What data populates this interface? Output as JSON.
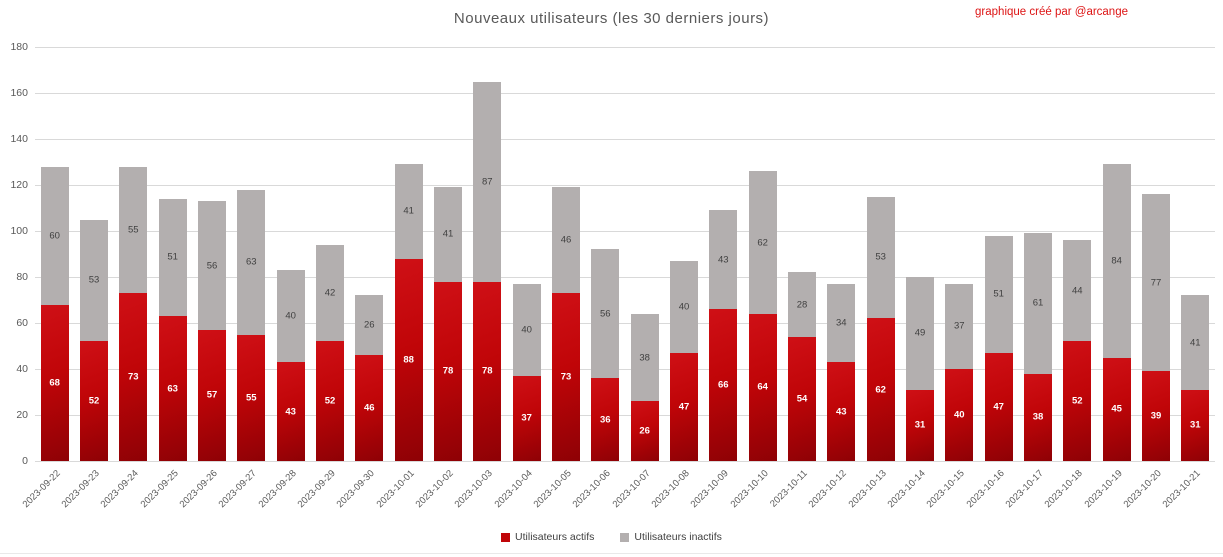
{
  "credit": "graphique créé par @arcange",
  "legend": {
    "active_label": "Utilisateurs actifs",
    "inactive_label": "Utilisateurs inactifs"
  },
  "colors": {
    "active_red": "#c00508",
    "inactive_gray": "#b3afaf",
    "credit_red": "#dd1414",
    "gridline": "#d9d9d9",
    "axis_text": "#595959"
  },
  "chart_data": {
    "type": "bar",
    "stacked": true,
    "title": "Nouveaux utilisateurs (les 30 derniers jours)",
    "xlabel": "",
    "ylabel": "",
    "ylim": [
      0,
      180
    ],
    "yticks": [
      0,
      20,
      40,
      60,
      80,
      100,
      120,
      140,
      160,
      180
    ],
    "grid": true,
    "legend_position": "bottom",
    "categories": [
      "2023-09-22",
      "2023-09-23",
      "2023-09-24",
      "2023-09-25",
      "2023-09-26",
      "2023-09-27",
      "2023-09-28",
      "2023-09-29",
      "2023-09-30",
      "2023-10-01",
      "2023-10-02",
      "2023-10-03",
      "2023-10-04",
      "2023-10-05",
      "2023-10-06",
      "2023-10-07",
      "2023-10-08",
      "2023-10-09",
      "2023-10-10",
      "2023-10-11",
      "2023-10-12",
      "2023-10-13",
      "2023-10-14",
      "2023-10-15",
      "2023-10-16",
      "2023-10-17",
      "2023-10-18",
      "2023-10-19",
      "2023-10-20",
      "2023-10-21"
    ],
    "series": [
      {
        "name": "Utilisateurs actifs",
        "color": "#c00508",
        "values": [
          68,
          52,
          73,
          63,
          57,
          55,
          43,
          52,
          46,
          88,
          78,
          78,
          37,
          73,
          36,
          26,
          47,
          66,
          64,
          54,
          43,
          62,
          31,
          40,
          47,
          38,
          52,
          45,
          39,
          31
        ]
      },
      {
        "name": "Utilisateurs inactifs",
        "color": "#b3afaf",
        "values": [
          60,
          53,
          55,
          51,
          56,
          63,
          40,
          42,
          26,
          41,
          41,
          87,
          40,
          46,
          56,
          38,
          40,
          43,
          62,
          28,
          34,
          53,
          49,
          37,
          51,
          61,
          44,
          84,
          77,
          41
        ]
      }
    ]
  }
}
